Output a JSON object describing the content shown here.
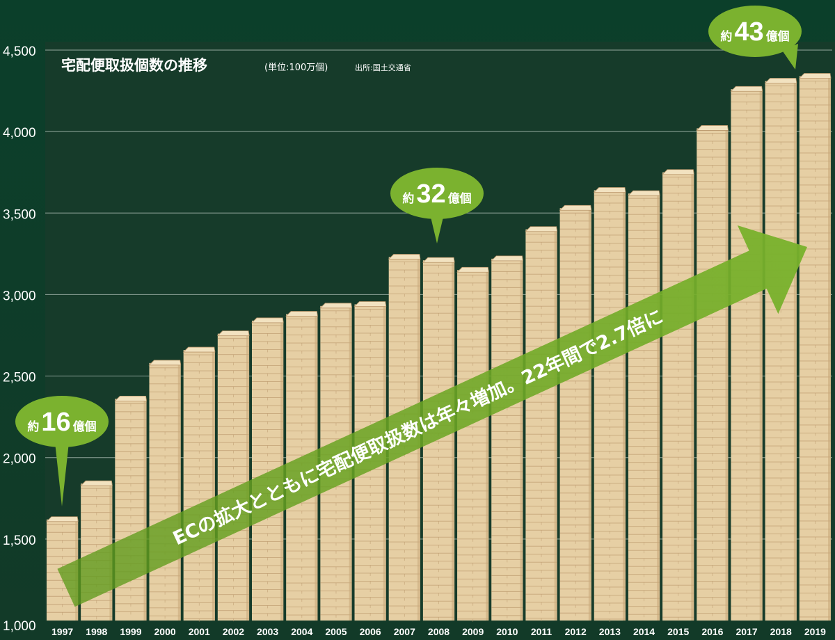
{
  "chart_data": {
    "type": "bar",
    "title": "宅配便取扱個数の推移",
    "unit": "(単位:100万個)",
    "source": "出所:国土交通省",
    "categories": [
      "1997",
      "1998",
      "1999",
      "2000",
      "2001",
      "2002",
      "2003",
      "2004",
      "2005",
      "2006",
      "2007",
      "2008",
      "2009",
      "2010",
      "2011",
      "2012",
      "2013",
      "2014",
      "2015",
      "2016",
      "2017",
      "2018",
      "2019"
    ],
    "values": [
      1620,
      1840,
      2360,
      2580,
      2660,
      2760,
      2840,
      2880,
      2930,
      2940,
      3230,
      3210,
      3150,
      3220,
      3400,
      3530,
      3640,
      3620,
      3750,
      4020,
      4260,
      4310,
      4340
    ],
    "ylim": [
      1000,
      4500
    ],
    "yticks": [
      "1,000",
      "1,500",
      "2,000",
      "2,500",
      "3,000",
      "3,500",
      "4,000",
      "4,500"
    ],
    "ytick_values": [
      1000,
      1500,
      2000,
      2500,
      3000,
      3500,
      4000,
      4500
    ],
    "grid": true,
    "callouts": [
      {
        "prefix": "約",
        "number": "16",
        "suffix": "億個",
        "category": "1997"
      },
      {
        "prefix": "約",
        "number": "32",
        "suffix": "億個",
        "category": "2008"
      },
      {
        "prefix": "約",
        "number": "43",
        "suffix": "億個",
        "category": "2019"
      }
    ],
    "annotation": "ECの拡大とともに宅配便取扱数は年々増加。22年間で2.7倍に"
  },
  "colors": {
    "background": "#0f3a27",
    "plot_background": "#173d2b",
    "gridline": "#9fb3a8",
    "box_face": "#e6cfa4",
    "box_top": "#f2e2c0",
    "box_line": "#b9966a",
    "callout_green": "#7bb22f",
    "arrow_green": "#6ea222"
  }
}
